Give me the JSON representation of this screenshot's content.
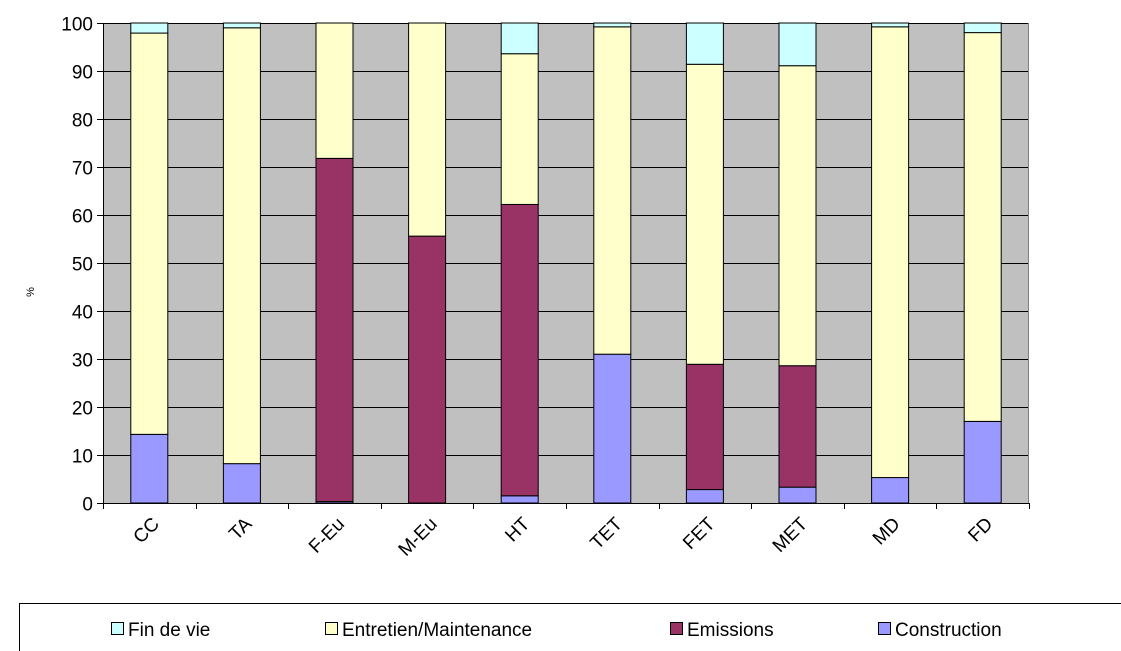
{
  "chart_data": {
    "type": "bar",
    "stacked": true,
    "title": "",
    "xlabel": "",
    "ylabel": "%",
    "ylim": [
      0,
      100
    ],
    "yticks": [
      0,
      10,
      20,
      30,
      40,
      50,
      60,
      70,
      80,
      90,
      100
    ],
    "categories": [
      "CC",
      "TA",
      "F-Eu",
      "M-Eu",
      "HT",
      "TET",
      "FET",
      "MET",
      "MD",
      "FD"
    ],
    "grid": true,
    "plot_background": "#c0c0c0",
    "legend_position": "bottom",
    "legend_order": [
      "Fin de vie",
      "Entretien/Maintenance",
      "Emissions",
      "Construction"
    ],
    "series": [
      {
        "name": "Construction",
        "color": "#9999ff",
        "values": [
          14.3,
          8.2,
          0.3,
          0,
          1.5,
          31.0,
          2.8,
          3.3,
          5.3,
          17.0
        ]
      },
      {
        "name": "Emissions",
        "color": "#993366",
        "values": [
          0,
          0,
          71.5,
          55.6,
          60.7,
          0,
          26.1,
          25.3,
          0,
          0
        ]
      },
      {
        "name": "Entretien/Maintenance",
        "color": "#ffffcc",
        "values": [
          83.6,
          90.8,
          28.2,
          44.4,
          31.4,
          68.2,
          62.5,
          62.5,
          93.9,
          81.0
        ]
      },
      {
        "name": "Fin de vie",
        "color": "#ccffff",
        "values": [
          2.1,
          1.0,
          0,
          0,
          6.4,
          0.8,
          8.6,
          8.9,
          0.8,
          2.0
        ]
      }
    ]
  }
}
